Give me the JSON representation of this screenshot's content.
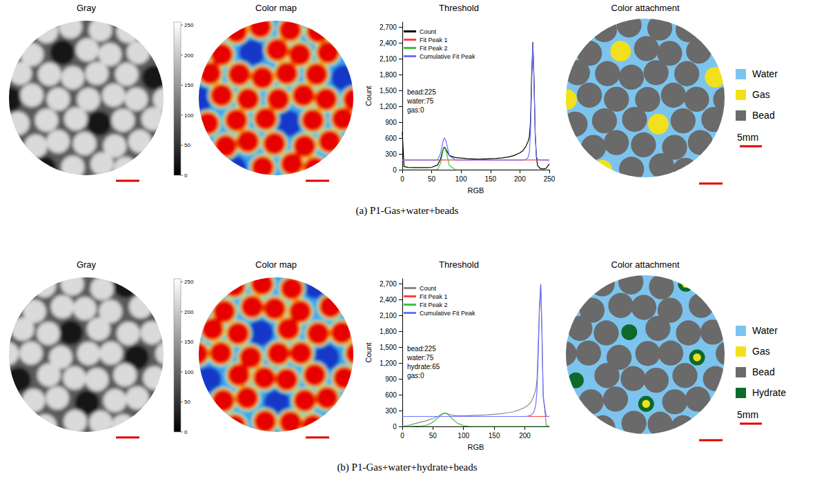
{
  "figure": {
    "rows": [
      {
        "caption": "(a) P1-Gas+water+beads",
        "gray_title": "Gray",
        "color_map_title": "Color map",
        "attachment_title": "Color attachment",
        "colorbar": {
          "range": [
            0,
            255
          ],
          "ticks": [
            0,
            50,
            100,
            150,
            200,
            250
          ]
        },
        "legend": [
          {
            "name": "Water",
            "color": "#7cc4ee"
          },
          {
            "name": "Gas",
            "color": "#f2e01c"
          },
          {
            "name": "Bead",
            "color": "#6b6b6b"
          }
        ],
        "scale_bar": "5mm"
      },
      {
        "caption": "(b) P1-Gas+water+hydrate+beads",
        "gray_title": "Gray",
        "color_map_title": "Color map",
        "attachment_title": "Color attachment",
        "colorbar": {
          "range": [
            0,
            255
          ],
          "ticks": [
            0,
            50,
            100,
            150,
            200,
            250
          ]
        },
        "legend": [
          {
            "name": "Water",
            "color": "#7cc4ee"
          },
          {
            "name": "Gas",
            "color": "#f2e01c"
          },
          {
            "name": "Bead",
            "color": "#6b6b6b"
          },
          {
            "name": "Hydrate",
            "color": "#0c6a2c"
          }
        ],
        "scale_bar": "5mm"
      }
    ]
  },
  "chart_data": [
    {
      "type": "line",
      "title": "Threshold",
      "xlabel": "RGB",
      "ylabel": "Count",
      "x": [
        0,
        3,
        10,
        20,
        30,
        40,
        50,
        60,
        65,
        70,
        72,
        75,
        80,
        90,
        100,
        110,
        120,
        130,
        140,
        150,
        160,
        170,
        180,
        190,
        200,
        205,
        210,
        214,
        216,
        218,
        220,
        222,
        224,
        226,
        228,
        230,
        235,
        240,
        245,
        250
      ],
      "series": [
        {
          "name": "Count",
          "color": "#000000",
          "values": [
            720,
            60,
            45,
            40,
            40,
            40,
            45,
            90,
            200,
            410,
            430,
            370,
            270,
            230,
            220,
            210,
            205,
            200,
            205,
            210,
            215,
            225,
            240,
            270,
            320,
            360,
            440,
            540,
            620,
            900,
            1800,
            2420,
            1700,
            700,
            250,
            80,
            20,
            15,
            30,
            110
          ]
        },
        {
          "name": "Fit Peak 1",
          "color": "#ff4040",
          "values": [
            185,
            185,
            185,
            185,
            185,
            185,
            185,
            185,
            185,
            185,
            185,
            185,
            185,
            185,
            185,
            185,
            185,
            185,
            185,
            185,
            185,
            185,
            185,
            185,
            185,
            185,
            185,
            185,
            185,
            185,
            185,
            185,
            185,
            185,
            185,
            185,
            185,
            185,
            185,
            185
          ]
        },
        {
          "name": "Fit Peak 2",
          "color": "#40c040",
          "values": [
            0,
            0,
            0,
            0,
            0,
            0,
            0,
            5,
            120,
            390,
            420,
            330,
            80,
            2,
            0,
            0,
            0,
            0,
            0,
            0,
            0,
            0,
            0,
            0,
            0,
            0,
            0,
            0,
            0,
            0,
            0,
            0,
            0,
            0,
            0,
            0,
            0,
            0,
            0,
            0
          ]
        },
        {
          "name": "Cumulative Fit Peak",
          "color": "#7070ff",
          "values": [
            185,
            185,
            185,
            185,
            185,
            185,
            185,
            185,
            305,
            575,
            605,
            515,
            265,
            187,
            185,
            185,
            185,
            185,
            185,
            185,
            185,
            185,
            185,
            185,
            185,
            185,
            195,
            235,
            330,
            700,
            1600,
            2400,
            1650,
            650,
            260,
            195,
            185,
            185,
            185,
            185
          ]
        }
      ],
      "xlim": [
        0,
        250
      ],
      "xticks": [
        0,
        50,
        100,
        150,
        200,
        250
      ],
      "ylim": [
        0,
        2800
      ],
      "yticks": [
        0,
        300,
        600,
        900,
        1200,
        1500,
        1800,
        2100,
        2400,
        2700
      ],
      "annotations": [
        "bead:225",
        "water:75",
        "gas:0"
      ],
      "legend": "upper left",
      "grid": false
    },
    {
      "type": "line",
      "title": "Threshold",
      "xlabel": "RGB",
      "ylabel": "Count",
      "x": [
        0,
        3,
        10,
        20,
        30,
        40,
        50,
        60,
        65,
        70,
        72,
        75,
        80,
        90,
        100,
        110,
        120,
        130,
        140,
        150,
        160,
        170,
        180,
        190,
        200,
        205,
        210,
        214,
        216,
        218,
        220,
        222,
        224,
        226,
        228,
        230,
        235,
        240
      ],
      "series": [
        {
          "name": "Count",
          "color": "#888888",
          "values": [
            0,
            5,
            20,
            50,
            80,
            110,
            150,
            200,
            240,
            255,
            250,
            235,
            215,
            200,
            200,
            205,
            210,
            215,
            220,
            230,
            240,
            255,
            275,
            310,
            360,
            400,
            460,
            560,
            620,
            700,
            900,
            1600,
            2300,
            2700,
            1800,
            600,
            20,
            0
          ]
        },
        {
          "name": "Fit Peak 1",
          "color": "#ff4040",
          "values": [
            190,
            190,
            190,
            190,
            190,
            190,
            190,
            190,
            190,
            190,
            190,
            190,
            190,
            190,
            190,
            190,
            190,
            190,
            190,
            190,
            190,
            190,
            190,
            190,
            190,
            190,
            190,
            190,
            190,
            190,
            190,
            190,
            190,
            190,
            190,
            190,
            190,
            190
          ]
        },
        {
          "name": "Fit Peak 2",
          "color": "#40c040",
          "values": [
            0,
            0,
            0,
            5,
            10,
            20,
            80,
            180,
            230,
            250,
            245,
            220,
            160,
            60,
            15,
            0,
            0,
            0,
            0,
            0,
            0,
            0,
            0,
            0,
            0,
            0,
            0,
            0,
            0,
            0,
            0,
            0,
            0,
            0,
            0,
            0,
            0,
            0
          ]
        },
        {
          "name": "Cumulative Fit Peak",
          "color": "#7070ff",
          "values": [
            190,
            190,
            190,
            190,
            190,
            190,
            190,
            190,
            190,
            190,
            190,
            190,
            190,
            190,
            190,
            190,
            190,
            190,
            190,
            190,
            190,
            190,
            190,
            190,
            190,
            195,
            210,
            260,
            320,
            420,
            700,
            1400,
            2250,
            2700,
            1750,
            550,
            195,
            190
          ]
        }
      ],
      "xlim": [
        0,
        240
      ],
      "xticks": [
        0,
        50,
        100,
        150,
        200
      ],
      "ylim": [
        0,
        2800
      ],
      "yticks": [
        0,
        300,
        600,
        900,
        1200,
        1500,
        1800,
        2100,
        2400,
        2700
      ],
      "annotations": [
        "bead:225",
        "water:75",
        "hydrate:65",
        "gas:0"
      ],
      "legend": "upper left",
      "grid": false
    }
  ]
}
